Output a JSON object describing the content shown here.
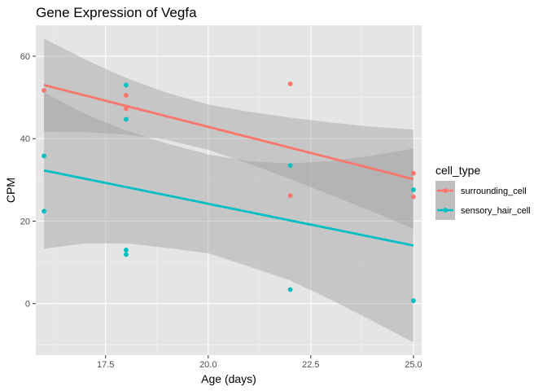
{
  "chart_data": {
    "type": "scatter",
    "title": "Gene Expression of Vegfa",
    "xlabel": "Age (days)",
    "ylabel": "CPM",
    "xlim": [
      15.8,
      25.2
    ],
    "ylim": [
      -12.5,
      67.5
    ],
    "x_ticks": [
      17.5,
      20.0,
      22.5,
      25.0
    ],
    "x_tick_labels": [
      "17.5",
      "20.0",
      "22.5",
      "25.0"
    ],
    "y_ticks": [
      0,
      20,
      40,
      60
    ],
    "y_tick_labels": [
      "0",
      "20",
      "40",
      "60"
    ],
    "grid": true,
    "background": "#e5e5e5",
    "legend": {
      "title": "cell_type",
      "position": "right"
    },
    "series": [
      {
        "name": "surrounding_cell",
        "color": "#f8766d",
        "points": [
          {
            "x": 16,
            "y": 51.7
          },
          {
            "x": 18,
            "y": 50.5
          },
          {
            "x": 18,
            "y": 47.3
          },
          {
            "x": 22,
            "y": 53.3
          },
          {
            "x": 22,
            "y": 26.2
          },
          {
            "x": 25,
            "y": 31.6
          },
          {
            "x": 25,
            "y": 25.9
          }
        ],
        "fit": {
          "x": [
            16,
            25
          ],
          "y": [
            53.0,
            30.2
          ]
        },
        "ci_upper": [
          {
            "x": 16,
            "y": 64.3
          },
          {
            "x": 17,
            "y": 59.2
          },
          {
            "x": 18,
            "y": 54.7
          },
          {
            "x": 19,
            "y": 51.1
          },
          {
            "x": 20,
            "y": 48.3
          },
          {
            "x": 21,
            "y": 46.5
          },
          {
            "x": 22,
            "y": 45.1
          },
          {
            "x": 23,
            "y": 43.9
          },
          {
            "x": 24,
            "y": 42.9
          },
          {
            "x": 25,
            "y": 42.2
          }
        ],
        "ci_lower": [
          {
            "x": 16,
            "y": 41.7
          },
          {
            "x": 17,
            "y": 41.6
          },
          {
            "x": 18,
            "y": 41.0
          },
          {
            "x": 19,
            "y": 39.7
          },
          {
            "x": 20,
            "y": 37.3
          },
          {
            "x": 21,
            "y": 33.9
          },
          {
            "x": 22,
            "y": 30.2
          },
          {
            "x": 23,
            "y": 26.3
          },
          {
            "x": 24,
            "y": 22.3
          },
          {
            "x": 25,
            "y": 18.2
          }
        ]
      },
      {
        "name": "sensory_hair_cell",
        "color": "#00bfc4",
        "points": [
          {
            "x": 16,
            "y": 35.8
          },
          {
            "x": 16,
            "y": 22.4
          },
          {
            "x": 18,
            "y": 53.0
          },
          {
            "x": 18,
            "y": 44.7
          },
          {
            "x": 18,
            "y": 13.0
          },
          {
            "x": 18,
            "y": 11.9
          },
          {
            "x": 22,
            "y": 33.5
          },
          {
            "x": 22,
            "y": 3.4
          },
          {
            "x": 25,
            "y": 27.6
          },
          {
            "x": 25,
            "y": 0.7
          }
        ],
        "fit": {
          "x": [
            16,
            25
          ],
          "y": [
            32.3,
            14.1
          ]
        },
        "ci_upper": [
          {
            "x": 16,
            "y": 51.2
          },
          {
            "x": 17,
            "y": 46.0
          },
          {
            "x": 18,
            "y": 42.0
          },
          {
            "x": 19,
            "y": 38.8
          },
          {
            "x": 20,
            "y": 36.2
          },
          {
            "x": 21,
            "y": 34.5
          },
          {
            "x": 22,
            "y": 34.0
          },
          {
            "x": 23,
            "y": 34.6
          },
          {
            "x": 24,
            "y": 35.9
          },
          {
            "x": 25,
            "y": 37.6
          }
        ],
        "ci_lower": [
          {
            "x": 16,
            "y": 13.3
          },
          {
            "x": 17,
            "y": 14.6
          },
          {
            "x": 18,
            "y": 14.6
          },
          {
            "x": 19,
            "y": 13.5
          },
          {
            "x": 20,
            "y": 12.2
          },
          {
            "x": 21,
            "y": 9.0
          },
          {
            "x": 22,
            "y": 5.6
          },
          {
            "x": 23,
            "y": 0.9
          },
          {
            "x": 24,
            "y": -4.2
          },
          {
            "x": 25,
            "y": -9.4
          }
        ]
      }
    ]
  }
}
